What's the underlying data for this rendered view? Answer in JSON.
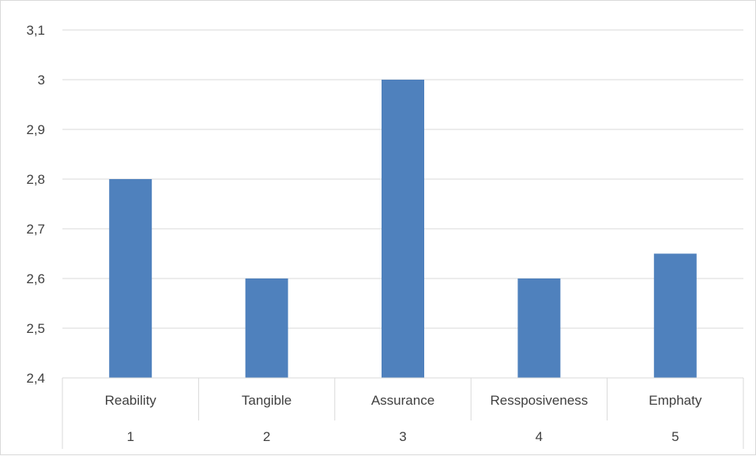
{
  "chart_data": {
    "type": "bar",
    "categories": [
      "Reability",
      "Tangible",
      "Assurance",
      "Ressposiveness",
      "Emphaty"
    ],
    "category_numbers": [
      "1",
      "2",
      "3",
      "4",
      "5"
    ],
    "values": [
      2.8,
      2.6,
      3.0,
      2.6,
      2.65
    ],
    "ylim": [
      2.4,
      3.1
    ],
    "yticks": [
      "2,4",
      "2,5",
      "2,6",
      "2,7",
      "2,8",
      "2,9",
      "3",
      "3,1"
    ],
    "grid": true,
    "legend": "none",
    "bar_color": "#4f81bd",
    "grid_color": "#d9d9d9",
    "text_color": "#404040"
  }
}
